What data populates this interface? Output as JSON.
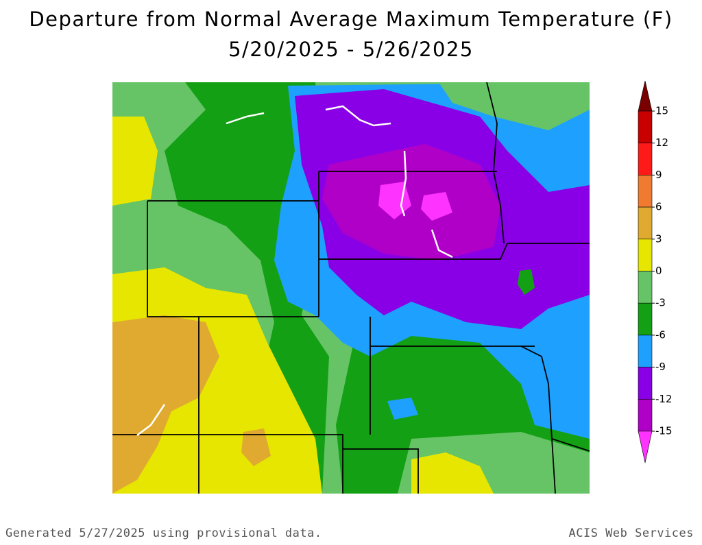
{
  "title": "Departure from Normal Average Maximum Temperature (F)",
  "subtitle": "5/20/2025 - 5/26/2025",
  "legend": {
    "range": [
      -15,
      15
    ],
    "ticks": [
      15,
      12,
      9,
      6,
      3,
      0,
      -3,
      -6,
      -9,
      -12,
      -15
    ],
    "colors": [
      "#7a0000",
      "#c80000",
      "#ff1a1a",
      "#f07a30",
      "#e0aa30",
      "#e6e600",
      "#66c466",
      "#14a014",
      "#1ea0ff",
      "#8a00e6",
      "#b000c8",
      "#ff33ff"
    ]
  },
  "footer": {
    "left": "Generated 5/27/2025 using provisional data.",
    "right": "ACIS Web Services"
  }
}
